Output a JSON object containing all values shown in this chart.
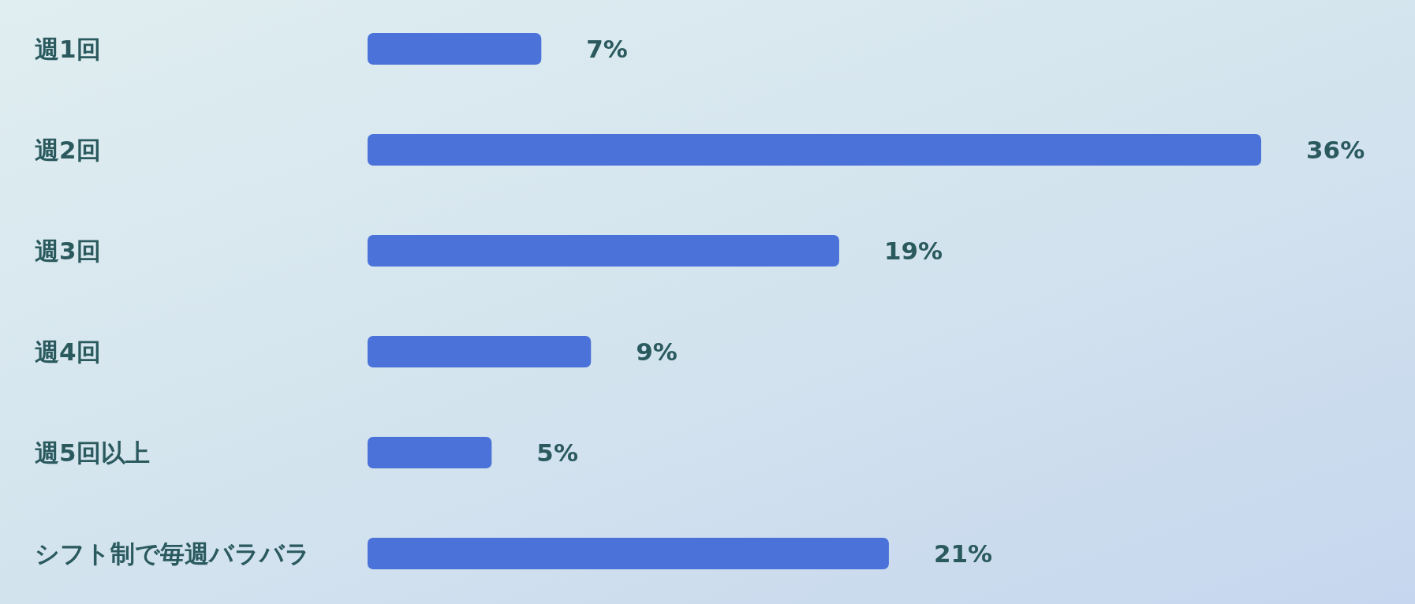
{
  "chart_data": {
    "type": "bar",
    "orientation": "horizontal",
    "categories": [
      "週1回",
      "週2回",
      "週3回",
      "週4回",
      "週5回以上",
      "シフト制で毎週バラバラ"
    ],
    "values": [
      7,
      36,
      19,
      9,
      5,
      21
    ],
    "value_labels": [
      "7%",
      "36%",
      "19%",
      "9%",
      "5%",
      "21%"
    ],
    "color": "#4a72d8"
  }
}
